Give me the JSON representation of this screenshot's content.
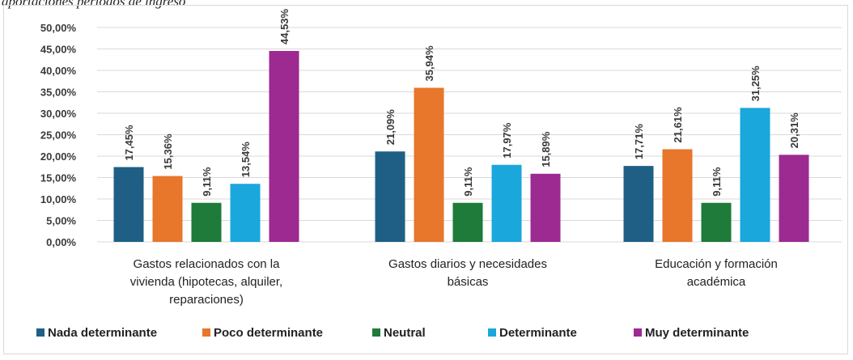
{
  "caption": "aportaciones periodos de ingreso",
  "chart_data": {
    "type": "bar",
    "title": "",
    "xlabel": "",
    "ylabel": "",
    "ylim": [
      0,
      50
    ],
    "y_ticks": [
      "0,00%",
      "5,00%",
      "10,00%",
      "15,00%",
      "20,00%",
      "25,00%",
      "30,00%",
      "35,00%",
      "40,00%",
      "45,00%",
      "50,00%"
    ],
    "grid": true,
    "legend_position": "bottom",
    "categories": [
      [
        "Gastos relacionados con la",
        "vivienda (hipotecas, alquiler,",
        "reparaciones)"
      ],
      [
        "Gastos diarios y necesidades",
        "básicas"
      ],
      [
        "Educación y formación",
        "académica"
      ]
    ],
    "series": [
      {
        "name": "Nada determinante",
        "color": "#1f5f85",
        "values": [
          17.45,
          21.09,
          17.71
        ],
        "labels": [
          "17,45%",
          "21,09%",
          "17,71%"
        ]
      },
      {
        "name": "Poco determinante",
        "color": "#e8762b",
        "values": [
          15.36,
          35.94,
          21.61
        ],
        "labels": [
          "15,36%",
          "35,94%",
          "21,61%"
        ]
      },
      {
        "name": "Neutral",
        "color": "#1e7b3a",
        "values": [
          9.11,
          9.11,
          9.11
        ],
        "labels": [
          "9,11%",
          "9,11%",
          "9,11%"
        ]
      },
      {
        "name": "Determinante",
        "color": "#1aa7dc",
        "values": [
          13.54,
          17.97,
          31.25
        ],
        "labels": [
          "13,54%",
          "17,97%",
          "31,25%"
        ]
      },
      {
        "name": "Muy determinante",
        "color": "#9c2a91",
        "values": [
          44.53,
          15.89,
          20.31
        ],
        "labels": [
          "44,53%",
          "15,89%",
          "20,31%"
        ]
      }
    ]
  }
}
